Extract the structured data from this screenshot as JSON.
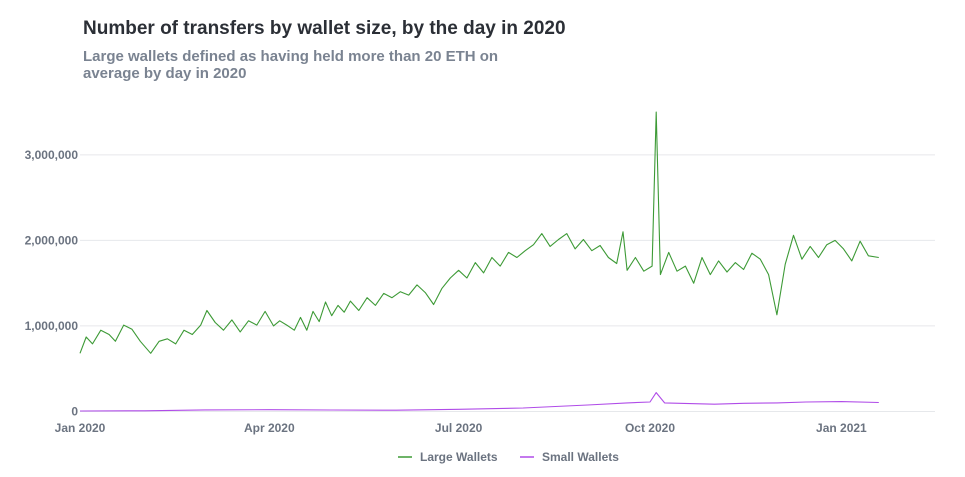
{
  "title": "Number of transfers by wallet size, by the day in 2020",
  "subtitle": "Large wallets defined as having held more than 20 ETH on average by day in 2020",
  "chart_data": {
    "type": "line",
    "x_range": [
      "2020-01-01",
      "2021-02-15"
    ],
    "ylim": [
      -100000,
      3700000
    ],
    "y_ticks": [
      0,
      1000000,
      2000000,
      3000000
    ],
    "y_tick_labels": [
      "0",
      "1,000,000",
      "2,000,000",
      "3,000,000"
    ],
    "x_ticks": [
      "2020-01-01",
      "2020-04-01",
      "2020-07-01",
      "2020-10-01",
      "2021-01-01"
    ],
    "x_tick_labels": [
      "Jan 2020",
      "Apr 2020",
      "Jul 2020",
      "Oct 2020",
      "Jan 2021"
    ],
    "grid": true,
    "legend_position": "bottom",
    "series": [
      {
        "name": "Large Wallets",
        "color": "#3d9a36",
        "points": [
          [
            "2020-01-01",
            680000
          ],
          [
            "2020-01-04",
            870000
          ],
          [
            "2020-01-07",
            790000
          ],
          [
            "2020-01-11",
            950000
          ],
          [
            "2020-01-15",
            900000
          ],
          [
            "2020-01-18",
            820000
          ],
          [
            "2020-01-22",
            1010000
          ],
          [
            "2020-01-26",
            960000
          ],
          [
            "2020-01-30",
            820000
          ],
          [
            "2020-02-04",
            680000
          ],
          [
            "2020-02-08",
            820000
          ],
          [
            "2020-02-12",
            850000
          ],
          [
            "2020-02-16",
            790000
          ],
          [
            "2020-02-20",
            950000
          ],
          [
            "2020-02-24",
            900000
          ],
          [
            "2020-02-28",
            1010000
          ],
          [
            "2020-03-02",
            1180000
          ],
          [
            "2020-03-06",
            1040000
          ],
          [
            "2020-03-10",
            950000
          ],
          [
            "2020-03-14",
            1070000
          ],
          [
            "2020-03-18",
            930000
          ],
          [
            "2020-03-22",
            1060000
          ],
          [
            "2020-03-26",
            1010000
          ],
          [
            "2020-03-30",
            1170000
          ],
          [
            "2020-04-03",
            1000000
          ],
          [
            "2020-04-06",
            1060000
          ],
          [
            "2020-04-10",
            1000000
          ],
          [
            "2020-04-13",
            950000
          ],
          [
            "2020-04-16",
            1100000
          ],
          [
            "2020-04-19",
            950000
          ],
          [
            "2020-04-22",
            1170000
          ],
          [
            "2020-04-25",
            1050000
          ],
          [
            "2020-04-28",
            1280000
          ],
          [
            "2020-05-01",
            1120000
          ],
          [
            "2020-05-04",
            1240000
          ],
          [
            "2020-05-07",
            1160000
          ],
          [
            "2020-05-10",
            1290000
          ],
          [
            "2020-05-14",
            1180000
          ],
          [
            "2020-05-18",
            1330000
          ],
          [
            "2020-05-22",
            1240000
          ],
          [
            "2020-05-26",
            1380000
          ],
          [
            "2020-05-30",
            1330000
          ],
          [
            "2020-06-03",
            1400000
          ],
          [
            "2020-06-07",
            1360000
          ],
          [
            "2020-06-11",
            1480000
          ],
          [
            "2020-06-15",
            1390000
          ],
          [
            "2020-06-19",
            1250000
          ],
          [
            "2020-06-23",
            1440000
          ],
          [
            "2020-06-27",
            1560000
          ],
          [
            "2020-07-01",
            1650000
          ],
          [
            "2020-07-05",
            1560000
          ],
          [
            "2020-07-09",
            1740000
          ],
          [
            "2020-07-13",
            1620000
          ],
          [
            "2020-07-17",
            1800000
          ],
          [
            "2020-07-21",
            1700000
          ],
          [
            "2020-07-25",
            1860000
          ],
          [
            "2020-07-29",
            1800000
          ],
          [
            "2020-08-02",
            1880000
          ],
          [
            "2020-08-06",
            1950000
          ],
          [
            "2020-08-10",
            2080000
          ],
          [
            "2020-08-14",
            1930000
          ],
          [
            "2020-08-18",
            2010000
          ],
          [
            "2020-08-22",
            2080000
          ],
          [
            "2020-08-26",
            1900000
          ],
          [
            "2020-08-30",
            2010000
          ],
          [
            "2020-09-03",
            1880000
          ],
          [
            "2020-09-07",
            1940000
          ],
          [
            "2020-09-11",
            1800000
          ],
          [
            "2020-09-15",
            1730000
          ],
          [
            "2020-09-18",
            2100000
          ],
          [
            "2020-09-20",
            1650000
          ],
          [
            "2020-09-24",
            1800000
          ],
          [
            "2020-09-28",
            1640000
          ],
          [
            "2020-10-02",
            1700000
          ],
          [
            "2020-10-04",
            3500000
          ],
          [
            "2020-10-06",
            1600000
          ],
          [
            "2020-10-10",
            1860000
          ],
          [
            "2020-10-14",
            1640000
          ],
          [
            "2020-10-18",
            1700000
          ],
          [
            "2020-10-22",
            1500000
          ],
          [
            "2020-10-26",
            1800000
          ],
          [
            "2020-10-30",
            1600000
          ],
          [
            "2020-11-03",
            1760000
          ],
          [
            "2020-11-07",
            1630000
          ],
          [
            "2020-11-11",
            1740000
          ],
          [
            "2020-11-15",
            1660000
          ],
          [
            "2020-11-19",
            1850000
          ],
          [
            "2020-11-23",
            1780000
          ],
          [
            "2020-11-27",
            1600000
          ],
          [
            "2020-12-01",
            1130000
          ],
          [
            "2020-12-05",
            1720000
          ],
          [
            "2020-12-09",
            2060000
          ],
          [
            "2020-12-13",
            1780000
          ],
          [
            "2020-12-17",
            1930000
          ],
          [
            "2020-12-21",
            1800000
          ],
          [
            "2020-12-25",
            1950000
          ],
          [
            "2020-12-29",
            2000000
          ],
          [
            "2021-01-02",
            1900000
          ],
          [
            "2021-01-06",
            1760000
          ],
          [
            "2021-01-10",
            1990000
          ],
          [
            "2021-01-14",
            1820000
          ],
          [
            "2021-01-19",
            1800000
          ]
        ]
      },
      {
        "name": "Small Wallets",
        "color": "#b04ce8",
        "points": [
          [
            "2020-01-01",
            5000
          ],
          [
            "2020-02-01",
            8000
          ],
          [
            "2020-03-01",
            18000
          ],
          [
            "2020-04-01",
            20000
          ],
          [
            "2020-05-01",
            17000
          ],
          [
            "2020-06-01",
            15000
          ],
          [
            "2020-07-01",
            25000
          ],
          [
            "2020-08-01",
            40000
          ],
          [
            "2020-09-01",
            75000
          ],
          [
            "2020-09-20",
            100000
          ],
          [
            "2020-10-01",
            110000
          ],
          [
            "2020-10-04",
            220000
          ],
          [
            "2020-10-08",
            100000
          ],
          [
            "2020-11-01",
            85000
          ],
          [
            "2020-11-15",
            95000
          ],
          [
            "2020-12-01",
            100000
          ],
          [
            "2020-12-15",
            110000
          ],
          [
            "2021-01-01",
            115000
          ],
          [
            "2021-01-19",
            105000
          ]
        ]
      }
    ]
  }
}
